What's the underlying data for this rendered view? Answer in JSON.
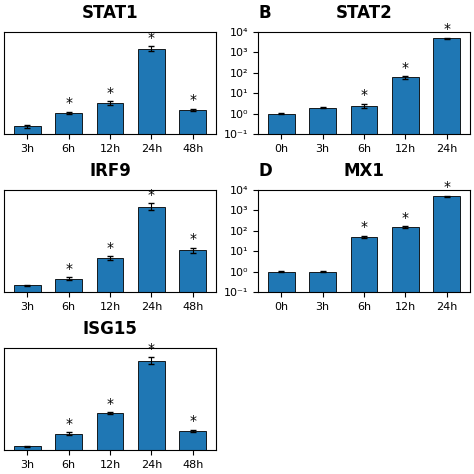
{
  "chart_data": [
    {
      "type": "bar",
      "title": "STAT1",
      "categories": [
        "3h",
        "6h",
        "12h",
        "24h",
        "48h"
      ],
      "values": [
        0.08,
        0.22,
        0.32,
        0.88,
        0.25
      ],
      "errors": [
        0.012,
        0.012,
        0.018,
        0.025,
        0.012
      ],
      "annotations": [
        {
          "x": "6h",
          "text": "*"
        },
        {
          "x": "12h",
          "text": "*"
        },
        {
          "x": "24h",
          "text": "*"
        },
        {
          "x": "48h",
          "text": "*"
        }
      ],
      "ylim": [
        0,
        1.05
      ],
      "yticks": [],
      "tick_labels": "x"
    },
    {
      "type": "bar",
      "title": "STAT2",
      "panel_label": "B",
      "categories": [
        "0h",
        "3h",
        "6h",
        "12h",
        "24h"
      ],
      "values": [
        1.0,
        2.0,
        2.5,
        60.0,
        5000.0
      ],
      "errors": [
        0.05,
        0.2,
        0.6,
        10.0,
        300.0
      ],
      "annotations": [
        {
          "x": "6h",
          "text": "*"
        },
        {
          "x": "12h",
          "text": "*"
        },
        {
          "x": "24h",
          "text": "*"
        }
      ],
      "log": "y",
      "ylim": [
        0.1,
        10000
      ],
      "yticks": [
        {
          "value": 0.1,
          "label": "10⁻¹"
        },
        {
          "value": 1,
          "label": "10⁰"
        },
        {
          "value": 10,
          "label": "10¹"
        },
        {
          "value": 100,
          "label": "10²"
        },
        {
          "value": 1000,
          "label": "10³"
        },
        {
          "value": 10000,
          "label": "10⁴"
        }
      ]
    },
    {
      "type": "bar",
      "title": "IRF9",
      "categories": [
        "3h",
        "6h",
        "12h",
        "24h",
        "48h"
      ],
      "values": [
        0.07,
        0.14,
        0.35,
        0.88,
        0.43
      ],
      "errors": [
        0.008,
        0.012,
        0.022,
        0.035,
        0.028
      ],
      "annotations": [
        {
          "x": "6h",
          "text": "*"
        },
        {
          "x": "12h",
          "text": "*"
        },
        {
          "x": "24h",
          "text": "*"
        },
        {
          "x": "48h",
          "text": "*"
        }
      ],
      "ylim": [
        0,
        1.05
      ],
      "yticks": [],
      "tick_labels": "x"
    },
    {
      "type": "bar",
      "title": "MX1",
      "panel_label": "D",
      "categories": [
        "0h",
        "3h",
        "6h",
        "12h",
        "24h"
      ],
      "values": [
        1.0,
        1.0,
        50.0,
        150.0,
        5000.0
      ],
      "errors": [
        0.06,
        0.08,
        7.0,
        18.0,
        400.0
      ],
      "annotations": [
        {
          "x": "6h",
          "text": "*"
        },
        {
          "x": "12h",
          "text": "*"
        },
        {
          "x": "24h",
          "text": "*"
        }
      ],
      "log": "y",
      "ylim": [
        0.1,
        10000
      ],
      "yticks": [
        {
          "value": 0.1,
          "label": "10⁻¹"
        },
        {
          "value": 1,
          "label": "10⁰"
        },
        {
          "value": 10,
          "label": "10¹"
        },
        {
          "value": 100,
          "label": "10²"
        },
        {
          "value": 1000,
          "label": "10³"
        },
        {
          "value": 10000,
          "label": "10⁴"
        }
      ]
    },
    {
      "type": "bar",
      "title": "ISG15",
      "categories": [
        "3h",
        "6h",
        "12h",
        "24h",
        "48h"
      ],
      "values": [
        0.04,
        0.17,
        0.38,
        0.92,
        0.2
      ],
      "errors": [
        0.004,
        0.013,
        0.012,
        0.035,
        0.012
      ],
      "annotations": [
        {
          "x": "6h",
          "text": "*"
        },
        {
          "x": "12h",
          "text": "*"
        },
        {
          "x": "24h",
          "text": "*"
        },
        {
          "x": "48h",
          "text": "*"
        }
      ],
      "ylim": [
        0,
        1.05
      ],
      "yticks": [],
      "tick_labels": "x"
    }
  ]
}
